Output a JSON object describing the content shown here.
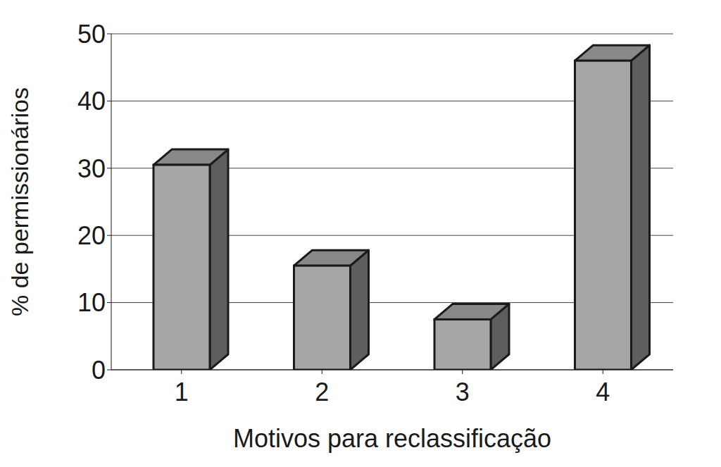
{
  "chart_data": {
    "type": "bar",
    "categories": [
      "1",
      "2",
      "3",
      "4"
    ],
    "values": [
      30.5,
      15.5,
      7.5,
      46
    ],
    "color": "#a6a6a6",
    "ylim": [
      0,
      50
    ],
    "yticks": [
      0,
      10,
      20,
      30,
      40,
      50
    ],
    "grid": true,
    "xlabel": "Motivos para reclassificação",
    "ylabel": "% de permissionários"
  }
}
